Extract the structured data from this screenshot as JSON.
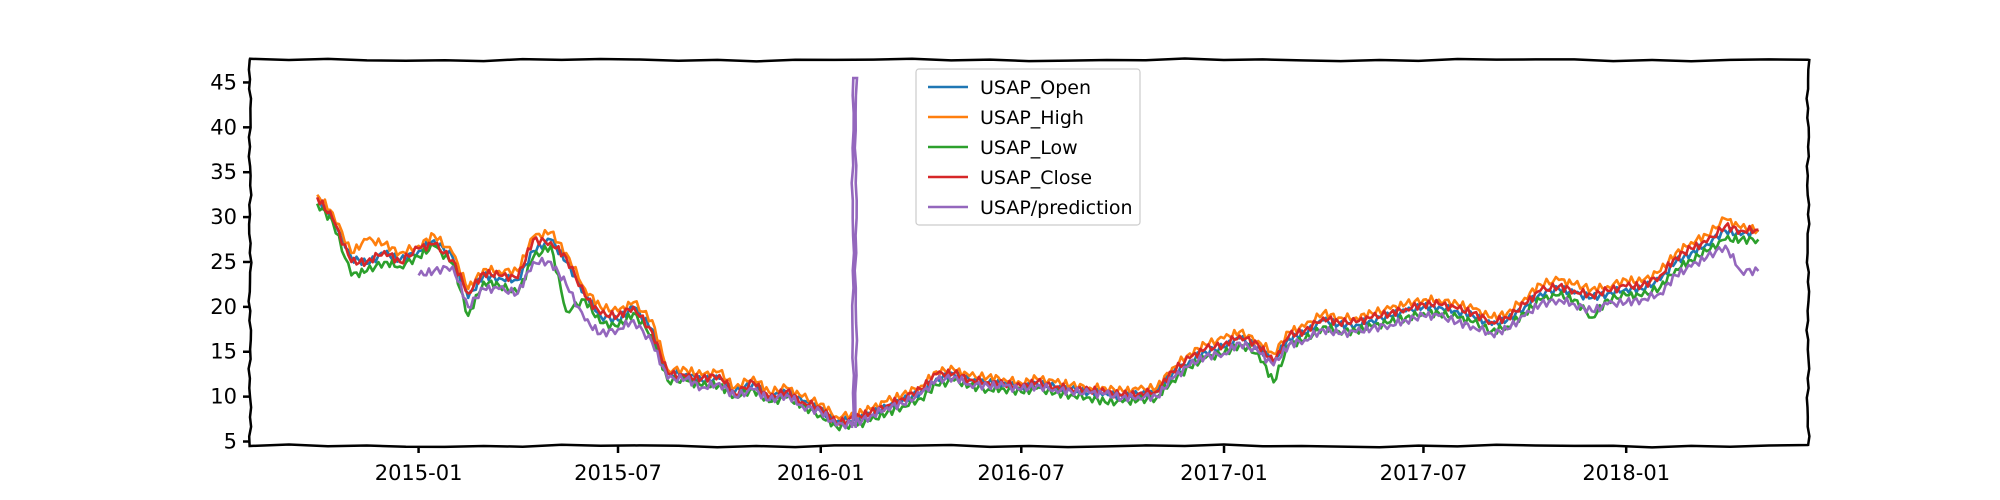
{
  "chart_data": {
    "type": "line",
    "title": "",
    "xlabel": "",
    "ylabel": "",
    "style": "xkcd",
    "xlim": [
      "2014-08-01",
      "2018-06-15"
    ],
    "ylim": [
      4.5,
      47.5
    ],
    "x_ticks": [
      "2015-01",
      "2015-07",
      "2016-01",
      "2016-07",
      "2017-01",
      "2017-07",
      "2018-01"
    ],
    "y_ticks": [
      5,
      10,
      15,
      20,
      25,
      30,
      35,
      40,
      45
    ],
    "legend": {
      "placement": "top-center",
      "entries": [
        "USAP_Open",
        "USAP_High",
        "USAP_Low",
        "USAP_Close",
        "USAP/prediction"
      ]
    },
    "x": [
      "2014-10-01",
      "2014-10-15",
      "2014-11-01",
      "2014-11-15",
      "2014-12-01",
      "2014-12-15",
      "2015-01-01",
      "2015-01-15",
      "2015-02-01",
      "2015-02-15",
      "2015-03-01",
      "2015-03-15",
      "2015-04-01",
      "2015-04-15",
      "2015-05-01",
      "2015-05-15",
      "2015-06-01",
      "2015-06-15",
      "2015-07-01",
      "2015-07-15",
      "2015-08-01",
      "2015-08-15",
      "2015-09-01",
      "2015-09-15",
      "2015-10-01",
      "2015-10-15",
      "2015-11-01",
      "2015-11-15",
      "2015-12-01",
      "2015-12-15",
      "2016-01-01",
      "2016-01-15",
      "2016-02-01",
      "2016-02-15",
      "2016-03-01",
      "2016-03-15",
      "2016-04-01",
      "2016-04-15",
      "2016-05-01",
      "2016-05-15",
      "2016-06-01",
      "2016-06-15",
      "2016-07-01",
      "2016-07-15",
      "2016-08-01",
      "2016-08-15",
      "2016-09-01",
      "2016-09-15",
      "2016-10-01",
      "2016-10-15",
      "2016-11-01",
      "2016-11-15",
      "2016-12-01",
      "2016-12-15",
      "2017-01-01",
      "2017-01-15",
      "2017-02-01",
      "2017-02-15",
      "2017-03-01",
      "2017-03-15",
      "2017-04-01",
      "2017-04-15",
      "2017-05-01",
      "2017-05-15",
      "2017-06-01",
      "2017-06-15",
      "2017-07-01",
      "2017-07-15",
      "2017-08-01",
      "2017-08-15",
      "2017-09-01",
      "2017-09-15",
      "2017-10-01",
      "2017-10-15",
      "2017-11-01",
      "2017-11-15",
      "2017-12-01",
      "2017-12-15",
      "2018-01-01",
      "2018-01-15",
      "2018-02-01",
      "2018-02-15",
      "2018-03-01",
      "2018-03-15",
      "2018-04-01",
      "2018-04-15",
      "2018-05-01"
    ],
    "series": [
      {
        "name": "USAP_Open",
        "color": "#1f77b4",
        "values": [
          32.0,
          30.0,
          25.5,
          24.8,
          26.0,
          25.2,
          26.2,
          27.4,
          25.5,
          21.0,
          23.5,
          23.2,
          23.0,
          26.2,
          27.5,
          25.0,
          21.5,
          19.0,
          18.5,
          20.0,
          17.5,
          12.5,
          12.5,
          11.8,
          12.0,
          10.5,
          11.5,
          10.0,
          10.5,
          9.5,
          8.5,
          7.2,
          7.5,
          8.0,
          8.8,
          9.5,
          10.5,
          12.0,
          12.5,
          11.8,
          11.5,
          11.5,
          11.0,
          11.5,
          11.0,
          10.8,
          10.5,
          10.5,
          10.0,
          10.2,
          10.5,
          12.5,
          14.0,
          15.0,
          15.5,
          16.5,
          15.5,
          14.0,
          16.5,
          17.0,
          18.5,
          18.0,
          18.0,
          18.5,
          19.0,
          19.5,
          20.0,
          20.0,
          19.5,
          19.0,
          18.0,
          18.5,
          20.0,
          21.5,
          22.0,
          21.5,
          21.0,
          21.5,
          22.0,
          22.0,
          23.0,
          25.0,
          26.0,
          27.0,
          28.5,
          28.0,
          28.5
        ]
      },
      {
        "name": "USAP_High",
        "color": "#ff7f0e",
        "values": [
          32.5,
          30.5,
          26.0,
          27.5,
          27.0,
          26.0,
          26.8,
          28.0,
          26.0,
          22.0,
          24.2,
          24.0,
          24.0,
          27.8,
          28.3,
          26.0,
          22.0,
          20.0,
          19.5,
          20.5,
          18.5,
          13.0,
          13.0,
          12.4,
          12.8,
          11.0,
          12.2,
          10.5,
          11.0,
          10.0,
          9.2,
          7.8,
          8.0,
          8.6,
          9.5,
          10.2,
          11.2,
          12.8,
          13.0,
          12.3,
          12.2,
          12.0,
          11.5,
          12.0,
          11.6,
          11.3,
          11.0,
          11.0,
          10.6,
          10.8,
          11.0,
          13.2,
          14.8,
          15.8,
          16.5,
          17.2,
          16.2,
          14.8,
          17.2,
          17.8,
          19.3,
          18.8,
          18.8,
          19.3,
          19.8,
          20.3,
          20.8,
          20.8,
          20.3,
          19.8,
          18.8,
          19.3,
          21.0,
          22.5,
          23.0,
          22.5,
          22.0,
          22.3,
          23.0,
          22.8,
          24.0,
          26.0,
          27.2,
          28.0,
          29.8,
          28.8,
          28.6
        ]
      },
      {
        "name": "USAP_Low",
        "color": "#2ca02c",
        "values": [
          31.5,
          29.5,
          23.5,
          24.0,
          25.0,
          24.5,
          25.6,
          26.8,
          24.8,
          19.0,
          22.8,
          22.4,
          21.5,
          25.5,
          26.8,
          19.5,
          20.8,
          18.2,
          17.8,
          19.3,
          16.8,
          11.8,
          11.8,
          11.2,
          11.3,
          10.0,
          10.8,
          9.4,
          9.9,
          9.0,
          7.9,
          6.7,
          6.8,
          7.3,
          8.2,
          8.9,
          9.8,
          11.3,
          11.8,
          11.2,
          10.8,
          10.9,
          10.5,
          10.9,
          10.4,
          10.2,
          9.9,
          9.4,
          9.4,
          9.6,
          9.9,
          11.8,
          13.3,
          14.3,
          14.8,
          15.8,
          14.8,
          11.6,
          15.8,
          16.3,
          17.8,
          17.3,
          17.3,
          17.8,
          18.3,
          18.8,
          19.3,
          19.3,
          18.8,
          18.3,
          17.3,
          17.8,
          19.3,
          20.8,
          21.3,
          20.8,
          18.8,
          20.8,
          21.3,
          21.2,
          22.2,
          24.2,
          25.2,
          26.2,
          27.5,
          27.5,
          27.5
        ]
      },
      {
        "name": "USAP_Close",
        "color": "#d62728",
        "values": [
          32.2,
          29.8,
          25.0,
          25.0,
          26.2,
          25.0,
          26.5,
          27.0,
          25.2,
          21.5,
          23.8,
          23.5,
          23.2,
          27.5,
          27.2,
          25.5,
          21.2,
          19.2,
          19.0,
          20.0,
          17.2,
          12.6,
          12.2,
          12.0,
          12.4,
          10.3,
          11.6,
          9.8,
          10.6,
          9.4,
          8.8,
          7.0,
          7.6,
          8.2,
          9.0,
          9.8,
          10.8,
          12.5,
          12.6,
          11.9,
          11.6,
          11.4,
          11.1,
          11.6,
          11.1,
          10.9,
          10.7,
          10.5,
          10.2,
          10.3,
          10.6,
          12.8,
          14.3,
          15.3,
          15.8,
          16.8,
          15.8,
          13.8,
          16.8,
          17.3,
          18.8,
          18.3,
          18.3,
          18.8,
          19.3,
          19.8,
          20.3,
          20.3,
          19.8,
          19.3,
          18.3,
          18.8,
          20.3,
          21.8,
          22.3,
          21.8,
          21.3,
          21.8,
          22.3,
          22.3,
          23.5,
          25.5,
          26.5,
          27.2,
          29.0,
          28.5,
          28.6
        ]
      },
      {
        "name": "USAP/prediction",
        "color": "#9467bd",
        "values": [
          null,
          null,
          null,
          null,
          null,
          null,
          23.5,
          24.0,
          24.5,
          20.0,
          22.0,
          22.0,
          21.5,
          25.0,
          25.0,
          22.5,
          18.5,
          17.0,
          17.5,
          18.5,
          16.0,
          12.0,
          12.0,
          11.0,
          11.5,
          10.0,
          10.8,
          9.6,
          10.2,
          9.0,
          8.3,
          6.8,
          7.0,
          7.8,
          8.8,
          9.2,
          10.3,
          11.8,
          12.2,
          11.4,
          11.2,
          11.2,
          10.8,
          11.2,
          10.8,
          10.6,
          10.4,
          10.3,
          9.9,
          10.0,
          10.0,
          12.0,
          13.5,
          14.5,
          14.8,
          16.0,
          15.0,
          13.5,
          15.8,
          16.3,
          17.5,
          17.0,
          17.2,
          17.6,
          18.0,
          18.5,
          19.0,
          19.0,
          18.3,
          17.8,
          17.0,
          17.5,
          19.0,
          20.3,
          20.8,
          20.3,
          19.5,
          20.3,
          20.5,
          20.8,
          21.5,
          23.5,
          24.5,
          25.5,
          26.8,
          24.0,
          24.0
        ],
        "spike": {
          "x": "2016-02-01",
          "values": [
            6.5,
            45.5
          ]
        }
      }
    ]
  }
}
